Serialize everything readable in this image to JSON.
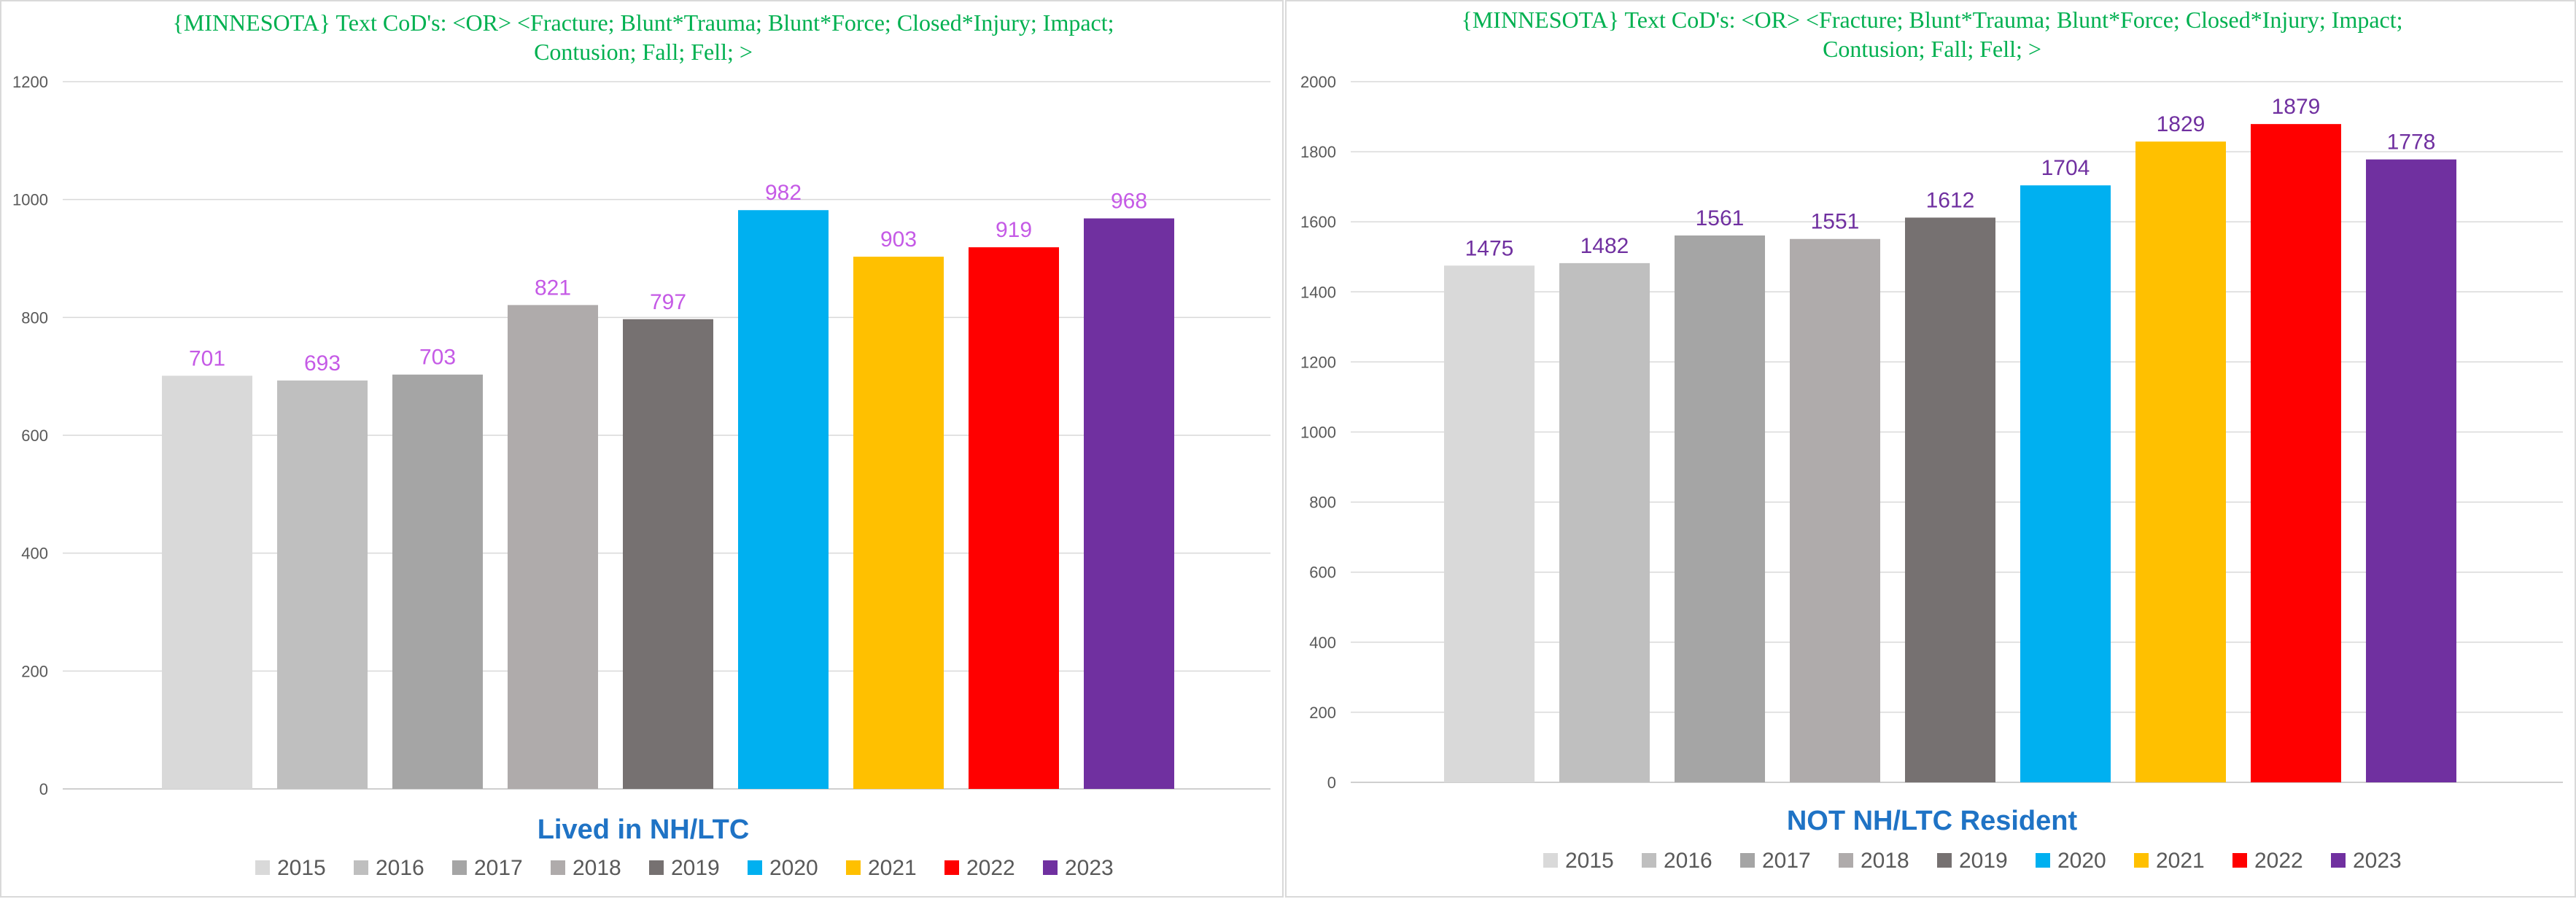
{
  "chart_data": [
    {
      "type": "bar",
      "title": "{MINNESOTA}   Text CoD's: <OR> <Fracture; Blunt*Trauma; Blunt*Force; Closed*Injury; Impact; Contusion; Fall; Fell; >",
      "title_lines": [
        "{MINNESOTA}   Text CoD's: <OR> <Fracture;  Blunt*Trauma;  Blunt*Force;  Closed*Injury;  Impact;",
        "Contusion;  Fall;  Fell;  >"
      ],
      "xlabel": "Lived in NH/LTC",
      "ylabel": "",
      "ylim": [
        0,
        1200
      ],
      "yticks": [
        0,
        200,
        400,
        600,
        800,
        1000,
        1200
      ],
      "grid": true,
      "legend": "bottom",
      "label_color": "#c55ae6",
      "categories": [
        "2015",
        "2016",
        "2017",
        "2018",
        "2019",
        "2020",
        "2021",
        "2022",
        "2023"
      ],
      "values": [
        701,
        693,
        703,
        821,
        797,
        982,
        903,
        919,
        968
      ],
      "colors": [
        "#d9d9d9",
        "#bfbfbf",
        "#a5a5a5",
        "#afabab",
        "#767171",
        "#00b0f0",
        "#ffc000",
        "#ff0000",
        "#7030a0"
      ]
    },
    {
      "type": "bar",
      "title": "{MINNESOTA}   Text CoD's: <OR> <Fracture; Blunt*Trauma; Blunt*Force; Closed*Injury; Impact; Contusion; Fall; Fell; >",
      "title_lines": [
        "{MINNESOTA}   Text CoD's: <OR> <Fracture;  Blunt*Trauma;  Blunt*Force;  Closed*Injury;  Impact;",
        "Contusion;  Fall;  Fell;  >"
      ],
      "xlabel": "NOT NH/LTC Resident",
      "ylabel": "",
      "ylim": [
        0,
        2000
      ],
      "yticks": [
        0,
        200,
        400,
        600,
        800,
        1000,
        1200,
        1400,
        1600,
        1800,
        2000
      ],
      "grid": true,
      "legend": "bottom",
      "label_color": "#7030a0",
      "categories": [
        "2015",
        "2016",
        "2017",
        "2018",
        "2019",
        "2020",
        "2021",
        "2022",
        "2023"
      ],
      "values": [
        1475,
        1482,
        1561,
        1551,
        1612,
        1704,
        1829,
        1879,
        1778
      ],
      "colors": [
        "#d9d9d9",
        "#bfbfbf",
        "#a5a5a5",
        "#afabab",
        "#767171",
        "#00b0f0",
        "#ffc000",
        "#ff0000",
        "#7030a0"
      ]
    }
  ]
}
